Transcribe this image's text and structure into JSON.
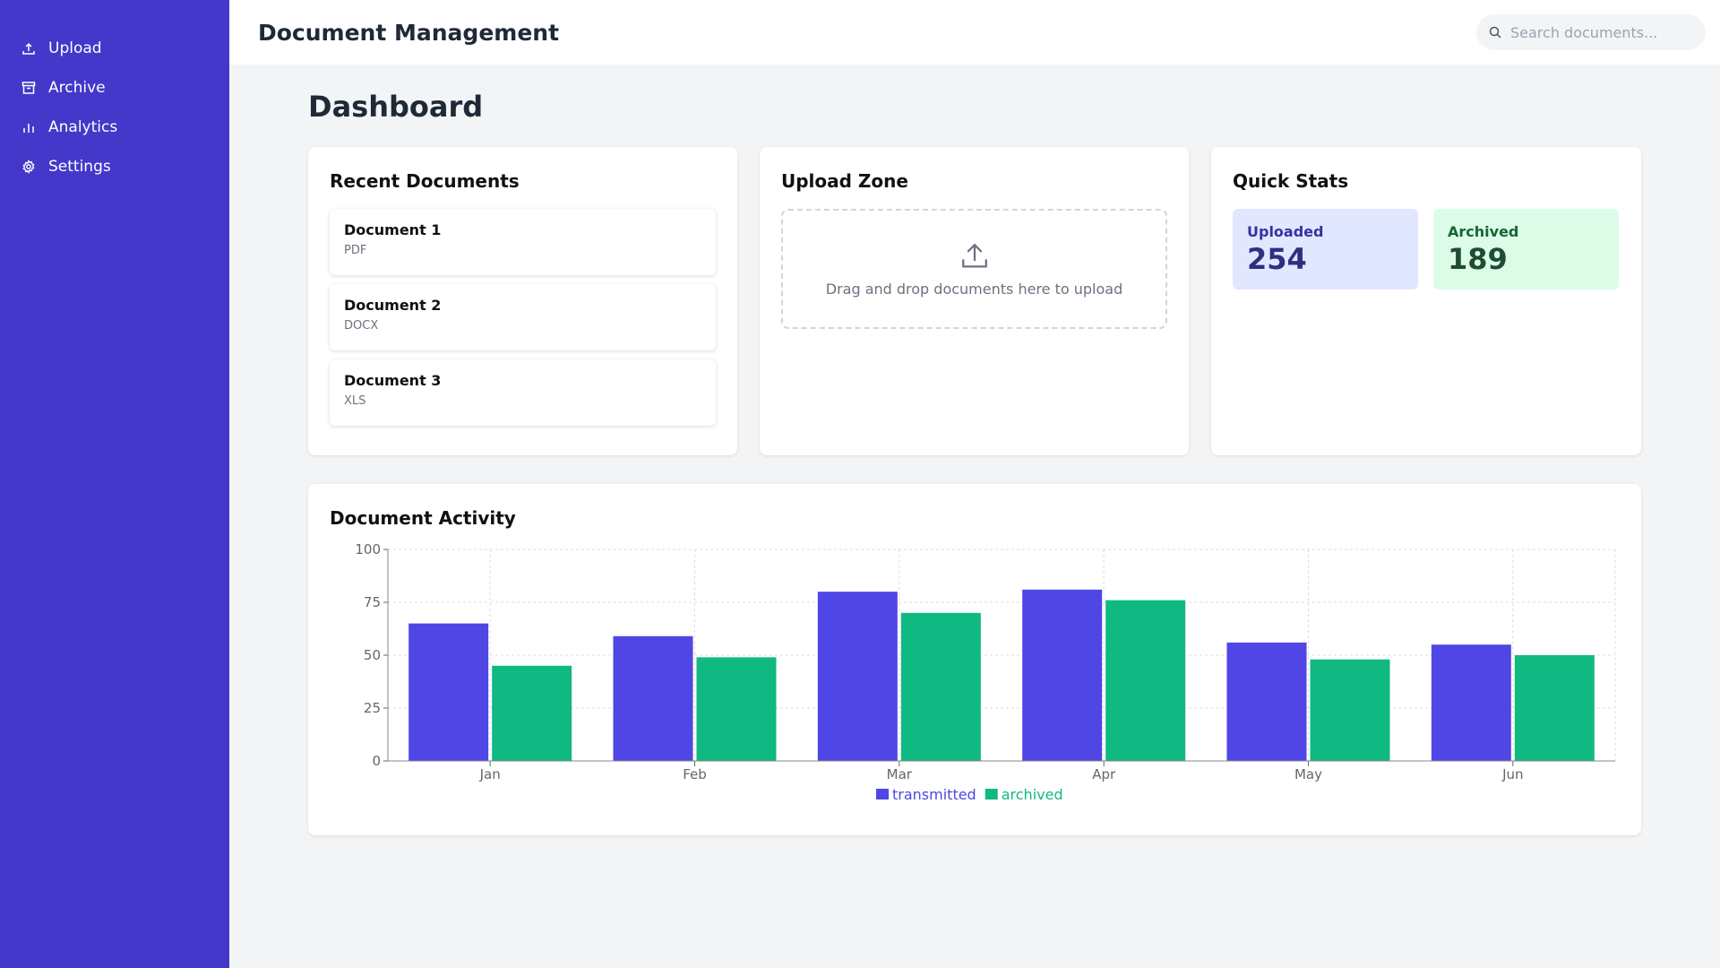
{
  "sidebar": {
    "items": [
      {
        "label": "Upload",
        "icon": "upload-icon"
      },
      {
        "label": "Archive",
        "icon": "archive-icon"
      },
      {
        "label": "Analytics",
        "icon": "bar-chart-icon"
      },
      {
        "label": "Settings",
        "icon": "gear-icon"
      }
    ]
  },
  "header": {
    "title": "Document Management",
    "search_placeholder": "Search documents..."
  },
  "main": {
    "title": "Dashboard",
    "recent": {
      "title": "Recent Documents",
      "items": [
        {
          "name": "Document 1",
          "type": "PDF"
        },
        {
          "name": "Document 2",
          "type": "DOCX"
        },
        {
          "name": "Document 3",
          "type": "XLS"
        }
      ]
    },
    "upload": {
      "title": "Upload Zone",
      "text": "Drag and drop documents here to upload"
    },
    "stats": {
      "title": "Quick Stats",
      "uploaded_label": "Uploaded",
      "uploaded_value": "254",
      "archived_label": "Archived",
      "archived_value": "189"
    },
    "activity": {
      "title": "Document Activity"
    }
  },
  "colors": {
    "sidebar": "#4338ca",
    "transmitted": "#4f46e5",
    "archived": "#10b981"
  },
  "chart_data": {
    "type": "bar",
    "categories": [
      "Jan",
      "Feb",
      "Mar",
      "Apr",
      "May",
      "Jun"
    ],
    "series": [
      {
        "name": "transmitted",
        "values": [
          65,
          59,
          80,
          81,
          56,
          55
        ]
      },
      {
        "name": "archived",
        "values": [
          45,
          49,
          70,
          76,
          48,
          50
        ]
      }
    ],
    "ylim": [
      0,
      100
    ],
    "yticks": [
      0,
      25,
      50,
      75,
      100
    ],
    "grid": true,
    "legend": "bottom"
  }
}
